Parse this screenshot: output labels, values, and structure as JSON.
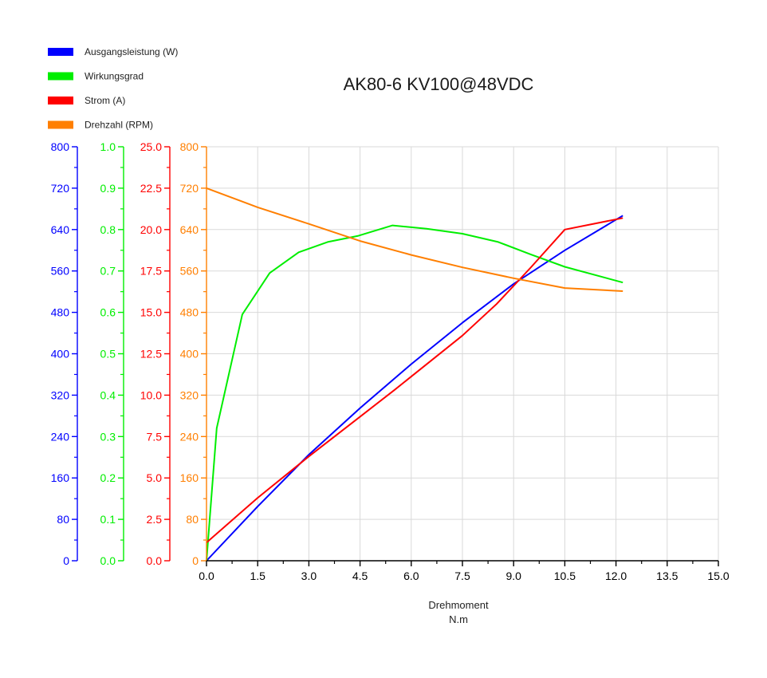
{
  "chart_data": {
    "type": "line",
    "title": "AK80-6 KV100@48VDC",
    "xlabel": "Drehmoment",
    "xunit": "N.m",
    "xlim": [
      0,
      15
    ],
    "xticks": [
      "0.0",
      "1.5",
      "3.0",
      "4.5",
      "6.0",
      "7.5",
      "9.0",
      "10.5",
      "12.0",
      "13.5",
      "15.0"
    ],
    "grid": true,
    "legend_position": "top-left",
    "y_axes": [
      {
        "id": "power",
        "color": "#0000ff",
        "ylim": [
          0,
          800
        ],
        "ticks": [
          "0",
          "80",
          "160",
          "240",
          "320",
          "400",
          "480",
          "560",
          "640",
          "720",
          "800"
        ]
      },
      {
        "id": "efficiency",
        "color": "#00ee00",
        "ylim": [
          0,
          1
        ],
        "ticks": [
          "0.0",
          "0.1",
          "0.2",
          "0.3",
          "0.4",
          "0.5",
          "0.6",
          "0.7",
          "0.8",
          "0.9",
          "1.0"
        ]
      },
      {
        "id": "current",
        "color": "#ff0000",
        "ylim": [
          0,
          25
        ],
        "ticks": [
          "0.0",
          "2.5",
          "5.0",
          "7.5",
          "10.0",
          "12.5",
          "15.0",
          "17.5",
          "20.0",
          "22.5",
          "25.0"
        ]
      },
      {
        "id": "speed",
        "color": "#ff7f00",
        "ylim": [
          0,
          800
        ],
        "ticks": [
          "0",
          "80",
          "160",
          "240",
          "320",
          "400",
          "480",
          "560",
          "640",
          "720",
          "800"
        ]
      }
    ],
    "series": [
      {
        "name": "Ausgangsleistung (W)",
        "axis": "power",
        "color": "#0000ff",
        "x": [
          0.0,
          1.5,
          3.0,
          4.5,
          6.0,
          7.5,
          9.0,
          10.5,
          12.2
        ],
        "y": [
          0,
          105,
          205,
          295,
          380,
          460,
          535,
          600,
          667
        ]
      },
      {
        "name": "Wirkungsgrad",
        "axis": "efficiency",
        "color": "#00ee00",
        "x": [
          0.0,
          0.3,
          1.05,
          1.85,
          2.7,
          3.55,
          4.45,
          5.45,
          6.45,
          7.5,
          8.55,
          9.5,
          10.5,
          12.2
        ],
        "y": [
          0.0,
          0.32,
          0.595,
          0.695,
          0.745,
          0.77,
          0.785,
          0.81,
          0.802,
          0.79,
          0.77,
          0.74,
          0.71,
          0.672
        ]
      },
      {
        "name": "Strom (A)",
        "axis": "current",
        "color": "#ff0000",
        "x": [
          0.0,
          1.5,
          3.0,
          4.5,
          5.5,
          7.5,
          8.5,
          9.5,
          10.5,
          12.2
        ],
        "y": [
          1.1,
          3.8,
          6.3,
          8.7,
          10.3,
          13.6,
          15.5,
          17.7,
          20.0,
          20.7
        ]
      },
      {
        "name": "Drehzahl (RPM)",
        "axis": "speed",
        "color": "#ff7f00",
        "x": [
          0.0,
          1.5,
          3.0,
          4.5,
          6.0,
          7.5,
          9.0,
          10.5,
          12.2
        ],
        "y": [
          720,
          683,
          651,
          618,
          591,
          567,
          546,
          527,
          521
        ]
      }
    ]
  }
}
